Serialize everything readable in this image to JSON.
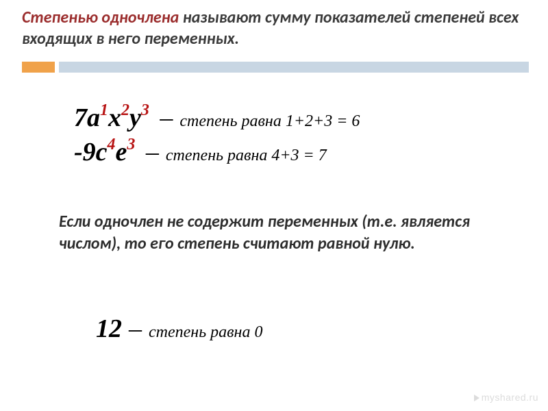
{
  "title": {
    "accent": "Степенью одночлена",
    "rest": " называют сумму показателей степеней всех входящих в него переменных.",
    "accent_color": "#9b2d2d",
    "rest_color": "#3a3a3a",
    "fontsize": 24
  },
  "accent_bar": {
    "orange": "#f0a24a",
    "blue": "#c8d6e3"
  },
  "examples": [
    {
      "coef": "7",
      "terms": [
        {
          "base": "a",
          "exp": "1"
        },
        {
          "base": "x",
          "exp": "2"
        },
        {
          "base": "y",
          "exp": "3"
        }
      ],
      "degree_label": "степень равна 1+2+3 = 6"
    },
    {
      "coef": "-9",
      "terms": [
        {
          "base": "c",
          "exp": "4"
        },
        {
          "base": "e",
          "exp": "3"
        }
      ],
      "degree_label": "степень равна 4+3 = 7"
    }
  ],
  "body": "Если одночлен не содержит переменных (т.е. является числом), то его степень считают равной нулю.",
  "constant_example": {
    "value": "12",
    "degree_label": "степень равна 0"
  },
  "exp_color": "#b81414",
  "watermark": "myshared.ru"
}
